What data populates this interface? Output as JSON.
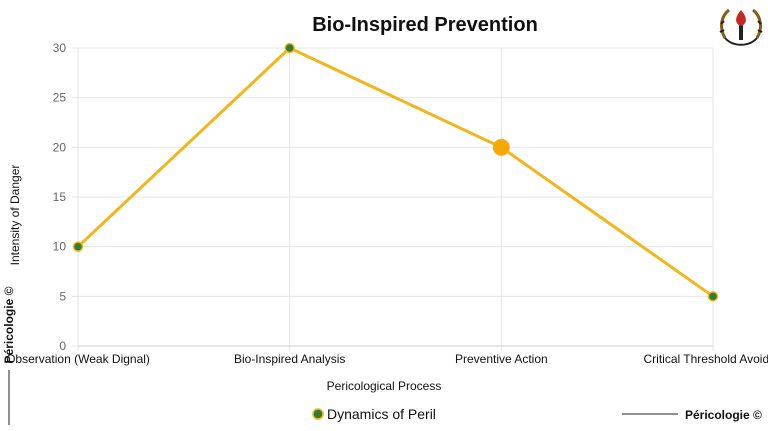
{
  "chart_data": {
    "type": "line",
    "title": "Bio-Inspired Prevention",
    "xlabel": "Pericological Process",
    "ylabel": "Intensity of Danger",
    "categories": [
      "Observation (Weak Dignal)",
      "Bio-Inspired Analysis",
      "Preventive Action",
      "Critical Threshold Avoided"
    ],
    "series": [
      {
        "name": "Dynamics of Peril",
        "values": [
          10,
          30,
          20,
          5
        ],
        "highlight_index": 2
      }
    ],
    "ylim": [
      0,
      30
    ],
    "yticks": [
      0,
      5,
      10,
      15,
      20,
      25,
      30
    ],
    "grid": true,
    "legend": "bottom-center",
    "colors": {
      "line": "#f2b51c",
      "marker": "#2e7d32",
      "highlight": "#f5a800",
      "grid": "#e6e6e6"
    }
  },
  "branding": {
    "watermark_text": "Péricologie ©",
    "footer_text": "Péricologie ©",
    "logo_icon": "torch-laurel-emblem"
  }
}
